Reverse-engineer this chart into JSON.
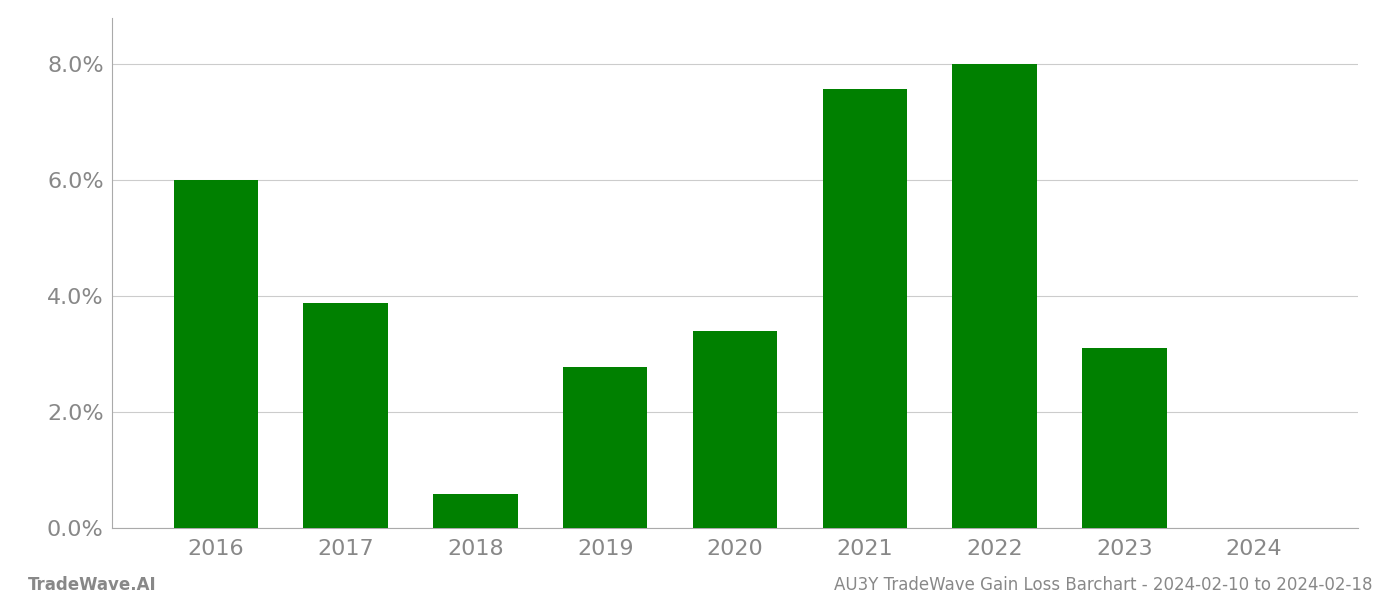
{
  "years": [
    "2016",
    "2017",
    "2018",
    "2019",
    "2020",
    "2021",
    "2022",
    "2023",
    "2024"
  ],
  "values": [
    0.0601,
    0.0388,
    0.0058,
    0.0278,
    0.034,
    0.0758,
    0.08,
    0.031,
    0.0
  ],
  "bar_color": "#008000",
  "background_color": "#ffffff",
  "grid_color": "#cccccc",
  "axis_label_color": "#888888",
  "spine_color": "#aaaaaa",
  "ylim": [
    0,
    0.088
  ],
  "yticks": [
    0.0,
    0.02,
    0.04,
    0.06,
    0.08
  ],
  "ytick_labels": [
    "0.0%",
    "2.0%",
    "4.0%",
    "6.0%",
    "8.0%"
  ],
  "tick_fontsize": 16,
  "footer_left": "TradeWave.AI",
  "footer_right": "AU3Y TradeWave Gain Loss Barchart - 2024-02-10 to 2024-02-18",
  "footer_color": "#888888",
  "footer_fontsize": 12,
  "bar_width": 0.65
}
